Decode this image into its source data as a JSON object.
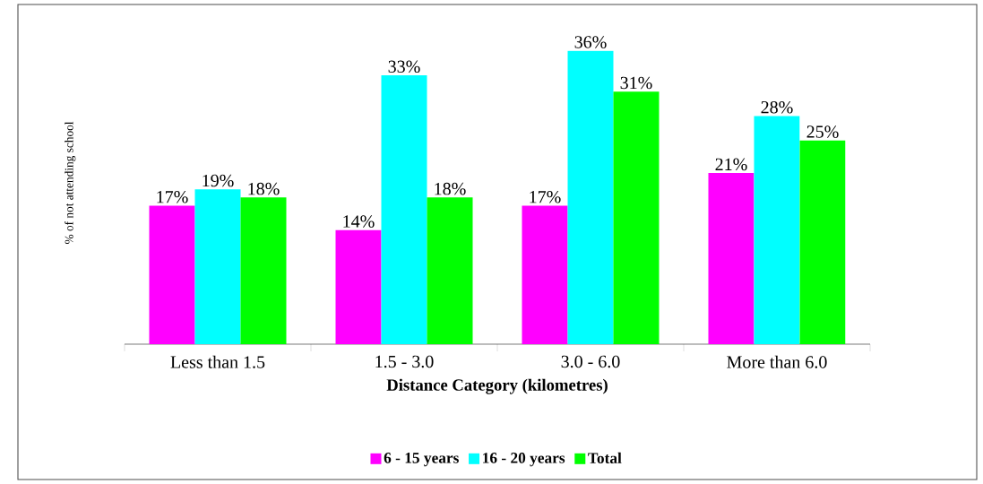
{
  "chart_data": {
    "type": "bar",
    "xlabel": "Distance Category (kilometres)",
    "ylabel": "% of not attending school",
    "categories": [
      "Less than 1.5",
      "1.5 - 3.0",
      "3.0 - 6.0",
      "More than 6.0"
    ],
    "legend": "bottom",
    "series": [
      {
        "name": "6 - 15 years",
        "color": "#ff00ff",
        "values": [
          17,
          14,
          17,
          21
        ],
        "value_labels": [
          "17%",
          "14%",
          "17%",
          "21%"
        ]
      },
      {
        "name": "16 - 20 years",
        "color": "#00ffff",
        "values": [
          19,
          33,
          36,
          28
        ],
        "value_labels": [
          "19%",
          "33%",
          "36%",
          "28%"
        ]
      },
      {
        "name": "Total",
        "color": "#00ff00",
        "values": [
          18,
          18,
          31,
          25
        ],
        "value_labels": [
          "18%",
          "18%",
          "31%",
          "25%"
        ]
      }
    ]
  }
}
